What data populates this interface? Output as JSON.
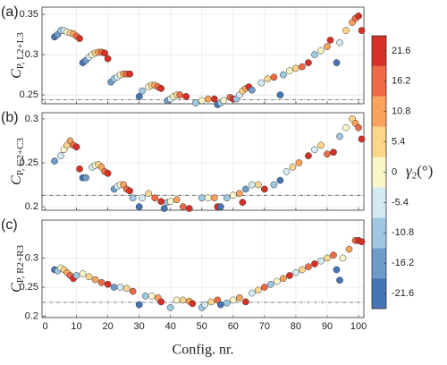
{
  "chart_data": [
    {
      "type": "scatter",
      "tag": "(a)",
      "ylabel": "C",
      "ylabel_sub": "P, L2+L3",
      "xlim": [
        -1,
        101.7
      ],
      "xticks": [
        0,
        10,
        20,
        30,
        40,
        50,
        60,
        70,
        80,
        90,
        100
      ],
      "ylim": [
        0.239,
        0.359
      ],
      "yticks": [
        0.25,
        0.3,
        0.35
      ],
      "grid": true,
      "ref_line": 0.244,
      "x": [
        3,
        4,
        5,
        6,
        7,
        8,
        9,
        10,
        11,
        12,
        13,
        14,
        15,
        16,
        17,
        18,
        19,
        20,
        21,
        22,
        23,
        24,
        25,
        26,
        27,
        30,
        31,
        33,
        34,
        35,
        36,
        37,
        39,
        40,
        41,
        42,
        43,
        45,
        48,
        50,
        52,
        54,
        55,
        56,
        57,
        59,
        60,
        61,
        62,
        63,
        64,
        65,
        66,
        69,
        71,
        73,
        75,
        76,
        78,
        80,
        82,
        84,
        86,
        88,
        90,
        91,
        93,
        94,
        96,
        98,
        99,
        100,
        101
      ],
      "y": [
        0.322,
        0.325,
        0.33,
        0.33,
        0.328,
        0.327,
        0.326,
        0.323,
        0.32,
        0.29,
        0.293,
        0.297,
        0.3,
        0.302,
        0.303,
        0.303,
        0.302,
        0.295,
        0.266,
        0.27,
        0.272,
        0.275,
        0.276,
        0.276,
        0.276,
        0.248,
        0.255,
        0.26,
        0.262,
        0.262,
        0.26,
        0.258,
        0.243,
        0.245,
        0.248,
        0.25,
        0.25,
        0.248,
        0.24,
        0.243,
        0.245,
        0.245,
        0.238,
        0.24,
        0.243,
        0.247,
        0.245,
        0.245,
        0.25,
        0.255,
        0.258,
        0.26,
        0.256,
        0.265,
        0.27,
        0.272,
        0.25,
        0.275,
        0.28,
        0.283,
        0.285,
        0.29,
        0.3,
        0.305,
        0.31,
        0.318,
        0.29,
        0.315,
        0.33,
        0.34,
        0.345,
        0.348,
        0.33
      ],
      "c": [
        -21.6,
        -16.2,
        -10.8,
        -5.4,
        0,
        5.4,
        10.8,
        16.2,
        21.6,
        -21.6,
        -16.2,
        -5.4,
        0,
        5.4,
        10.8,
        16.2,
        21.6,
        21.6,
        -16.2,
        -10.8,
        -5.4,
        0,
        10.8,
        16.2,
        21.6,
        -21.6,
        -10.8,
        0,
        5.4,
        10.8,
        16.2,
        21.6,
        -16.2,
        -5.4,
        0,
        5.4,
        16.2,
        21.6,
        -10.8,
        0,
        10.8,
        21.6,
        -21.6,
        -10.8,
        0,
        16.2,
        21.6,
        -10.8,
        -5.4,
        5.4,
        10.8,
        21.6,
        -16.2,
        -5.4,
        5.4,
        16.2,
        -21.6,
        -10.8,
        0,
        5.4,
        16.2,
        21.6,
        -10.8,
        0,
        10.8,
        21.6,
        -21.6,
        -5.4,
        5.4,
        10.8,
        16.2,
        21.6,
        21.6
      ]
    },
    {
      "type": "scatter",
      "tag": "(b)",
      "ylabel": "C",
      "ylabel_sub": "P, C2+C3",
      "xlim": [
        -1,
        101.7
      ],
      "xticks": [
        0,
        10,
        20,
        30,
        40,
        50,
        60,
        70,
        80,
        90,
        100
      ],
      "ylim": [
        0.196,
        0.307
      ],
      "yticks": [
        0.2,
        0.25,
        0.3
      ],
      "grid": true,
      "ref_line": 0.213,
      "x": [
        3,
        5,
        6,
        7,
        8,
        9,
        10,
        11,
        12,
        13,
        15,
        16,
        17,
        18,
        19,
        20,
        22,
        23,
        24,
        25,
        26,
        27,
        28,
        30,
        31,
        33,
        35,
        37,
        38,
        39,
        40,
        42,
        44,
        46,
        50,
        52,
        54,
        55,
        56,
        58,
        60,
        62,
        63,
        64,
        66,
        68,
        70,
        73,
        75,
        77,
        79,
        81,
        84,
        86,
        88,
        90,
        92,
        94,
        96,
        98,
        99,
        100,
        101
      ],
      "y": [
        0.252,
        0.258,
        0.265,
        0.27,
        0.275,
        0.27,
        0.268,
        0.243,
        0.233,
        0.233,
        0.245,
        0.247,
        0.248,
        0.245,
        0.24,
        0.238,
        0.22,
        0.223,
        0.225,
        0.225,
        0.22,
        0.218,
        0.21,
        0.2,
        0.21,
        0.215,
        0.21,
        0.206,
        0.198,
        0.205,
        0.206,
        0.208,
        0.2,
        0.198,
        0.21,
        0.21,
        0.21,
        0.2,
        0.2,
        0.21,
        0.213,
        0.215,
        0.205,
        0.22,
        0.225,
        0.225,
        0.22,
        0.225,
        0.23,
        0.24,
        0.245,
        0.25,
        0.258,
        0.265,
        0.27,
        0.26,
        0.262,
        0.28,
        0.29,
        0.3,
        0.295,
        0.29,
        0.277
      ],
      "c": [
        -16.2,
        -5.4,
        0,
        5.4,
        10.8,
        16.2,
        21.6,
        21.6,
        -21.6,
        -16.2,
        -5.4,
        0,
        5.4,
        10.8,
        16.2,
        21.6,
        -16.2,
        -5.4,
        0,
        10.8,
        16.2,
        21.6,
        -10.8,
        -21.6,
        -5.4,
        5.4,
        16.2,
        21.6,
        -21.6,
        -10.8,
        0,
        10.8,
        16.2,
        21.6,
        -10.8,
        0,
        10.8,
        21.6,
        -21.6,
        -10.8,
        0,
        10.8,
        21.6,
        -16.2,
        -5.4,
        5.4,
        21.6,
        -10.8,
        -21.6,
        -5.4,
        5.4,
        10.8,
        21.6,
        -5.4,
        5.4,
        16.2,
        21.6,
        -10.8,
        0,
        5.4,
        10.8,
        16.2,
        21.6
      ]
    },
    {
      "type": "scatter",
      "tag": "(c)",
      "ylabel": "C",
      "ylabel_sub": "P, R2+R3",
      "xlabel": "Config. nr.",
      "xlim": [
        -1,
        101.7
      ],
      "xticks": [
        0,
        10,
        20,
        30,
        40,
        50,
        60,
        70,
        80,
        90,
        100
      ],
      "ylim": [
        0.198,
        0.365
      ],
      "yticks": [
        0.2,
        0.25,
        0.3
      ],
      "grid": true,
      "ref_line": 0.224,
      "x": [
        3,
        4,
        5,
        6,
        7,
        8,
        9,
        10,
        12,
        14,
        16,
        18,
        20,
        22,
        24,
        26,
        28,
        30,
        32,
        34,
        36,
        37,
        40,
        42,
        44,
        46,
        47,
        50,
        51,
        53,
        55,
        56,
        58,
        60,
        62,
        64,
        66,
        68,
        70,
        72,
        74,
        76,
        78,
        80,
        82,
        84,
        86,
        88,
        90,
        92,
        93,
        94,
        95,
        97,
        99,
        100,
        101
      ],
      "y": [
        0.28,
        0.278,
        0.283,
        0.28,
        0.275,
        0.27,
        0.265,
        0.27,
        0.273,
        0.268,
        0.263,
        0.258,
        0.255,
        0.25,
        0.25,
        0.248,
        0.243,
        0.22,
        0.235,
        0.235,
        0.232,
        0.225,
        0.215,
        0.228,
        0.228,
        0.226,
        0.222,
        0.215,
        0.22,
        0.225,
        0.228,
        0.22,
        0.223,
        0.228,
        0.232,
        0.225,
        0.24,
        0.245,
        0.25,
        0.255,
        0.26,
        0.265,
        0.27,
        0.275,
        0.28,
        0.285,
        0.29,
        0.295,
        0.3,
        0.305,
        0.28,
        0.262,
        0.3,
        0.315,
        0.33,
        0.33,
        0.328
      ],
      "c": [
        -21.6,
        -10.8,
        0,
        5.4,
        10.8,
        16.2,
        21.6,
        -10.8,
        0,
        5.4,
        10.8,
        16.2,
        21.6,
        -16.2,
        -5.4,
        5.4,
        16.2,
        -21.6,
        -10.8,
        0,
        10.8,
        21.6,
        -10.8,
        0,
        5.4,
        10.8,
        21.6,
        -10.8,
        -5.4,
        5.4,
        16.2,
        -21.6,
        -10.8,
        0,
        10.8,
        21.6,
        -5.4,
        5.4,
        16.2,
        -10.8,
        0,
        10.8,
        21.6,
        -5.4,
        5.4,
        16.2,
        21.6,
        -5.4,
        5.4,
        16.2,
        -21.6,
        -21.6,
        0,
        10.8,
        16.2,
        21.6,
        21.6
      ]
    },
    {
      "type": "colorbar",
      "label": "γ",
      "label_sub": "2",
      "label_unit": "(°)",
      "clim": [
        -24.3,
        24.3
      ],
      "cticks": [
        -21.6,
        -16.2,
        -10.8,
        -5.4,
        0,
        5.4,
        10.8,
        16.2,
        21.6
      ],
      "colors": [
        "#4575b4",
        "#6d9ccb",
        "#9ec8e1",
        "#d4eaf2",
        "#fbf6c8",
        "#fdd58b",
        "#fba35c",
        "#ef6a45",
        "#d73027"
      ]
    }
  ]
}
